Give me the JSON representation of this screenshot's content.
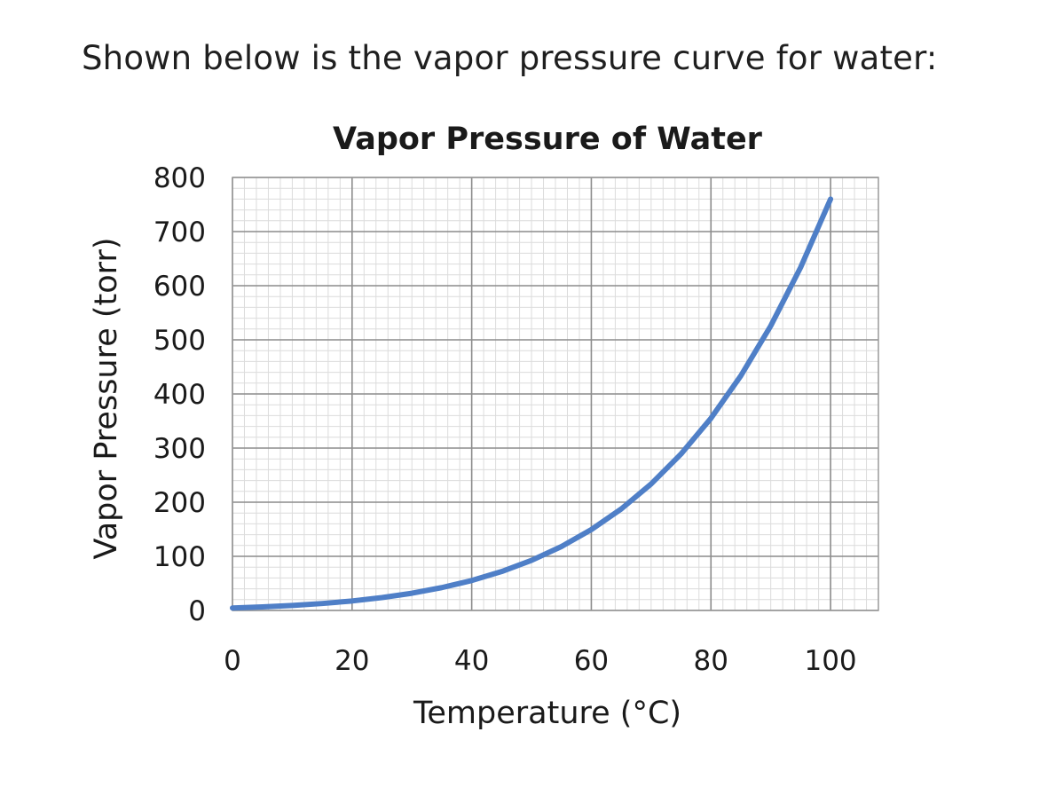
{
  "intro_text": "Shown below is the vapor pressure curve for water:",
  "chart_data": {
    "type": "line",
    "title": "Vapor Pressure of Water",
    "xlabel": "Temperature (°C)",
    "ylabel": "Vapor Pressure (torr)",
    "xlim": [
      0,
      108
    ],
    "ylim": [
      0,
      800
    ],
    "x_ticks": [
      0,
      20,
      40,
      60,
      80,
      100
    ],
    "y_ticks": [
      0,
      100,
      200,
      300,
      400,
      500,
      600,
      700,
      800
    ],
    "grid": true,
    "series_color": "#4f7fc7",
    "series": [
      {
        "x": [
          0,
          5,
          10,
          15,
          20,
          25,
          30,
          35,
          40,
          45,
          50,
          55,
          60,
          65,
          70,
          75,
          80,
          85,
          90,
          95,
          100
        ],
        "y": [
          4.6,
          6.5,
          9.2,
          12.8,
          17.5,
          23.8,
          31.8,
          42.2,
          55.3,
          71.9,
          92.5,
          118.0,
          149.4,
          187.5,
          233.7,
          289.1,
          355.1,
          433.6,
          525.8,
          633.9,
          760.0
        ]
      }
    ]
  }
}
